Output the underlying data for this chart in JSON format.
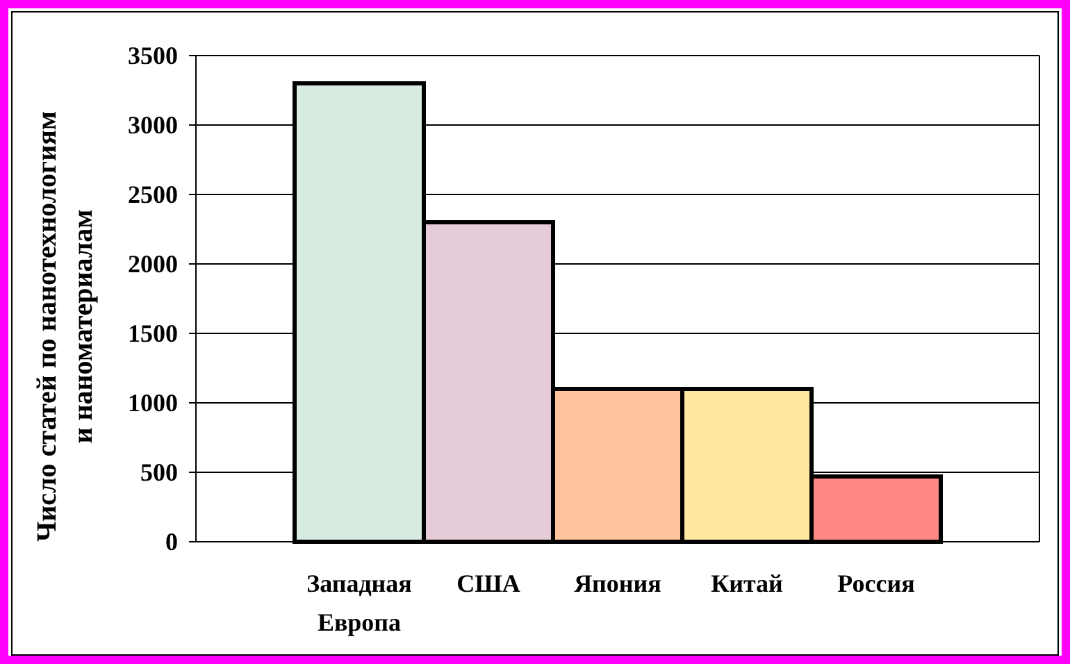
{
  "chart_data": {
    "type": "bar",
    "ylabel": "Число статей по нанотехнологиям\nи наноматериалам",
    "categories": [
      "Западная Европа",
      "США",
      "Япония",
      "Китай",
      "Россия"
    ],
    "values": [
      3300,
      2300,
      1100,
      1100,
      470
    ],
    "colors": [
      "#d8ebe1",
      "#e6cbd8",
      "#ffc49c",
      "#ffe9a0",
      "#ff8884"
    ],
    "ylim": [
      0,
      3500
    ],
    "yticks": [
      0,
      500,
      1000,
      1500,
      2000,
      2500,
      3000,
      3500
    ],
    "grid": "y"
  }
}
